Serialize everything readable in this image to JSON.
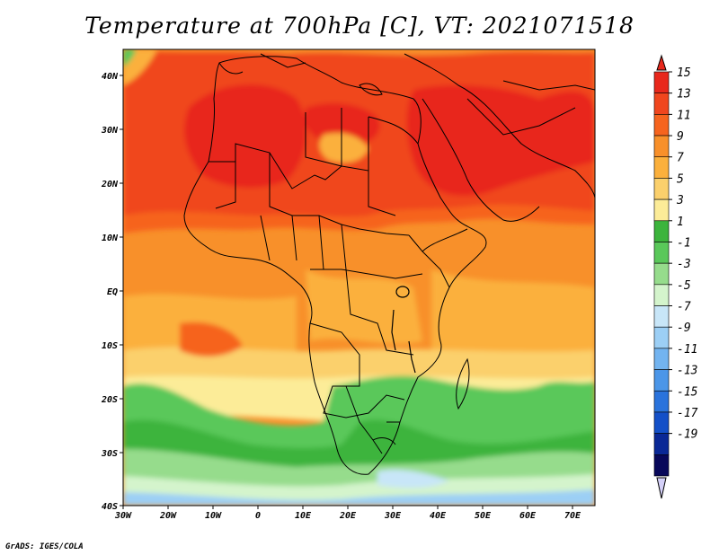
{
  "title": "Temperature at 700hPa [C], VT: 2021071518",
  "credit": "GrADS: IGES/COLA",
  "axes": {
    "lon_ticks": [
      "30W",
      "20W",
      "10W",
      "0",
      "10E",
      "20E",
      "30E",
      "40E",
      "50E",
      "60E",
      "70E"
    ],
    "lat_ticks": [
      "40N",
      "30N",
      "20N",
      "10N",
      "EQ",
      "10S",
      "20S",
      "30S",
      "40S"
    ]
  },
  "colorbar": {
    "labels": [
      "15",
      "13",
      "11",
      "9",
      "7",
      "5",
      "3",
      "1",
      "-1",
      "-3",
      "-5",
      "-7",
      "-9",
      "-11",
      "-13",
      "-15",
      "-17",
      "-19"
    ],
    "colors": [
      "#e8281c",
      "#f0461e",
      "#f6641e",
      "#f8902a",
      "#fbb03c",
      "#fbd06c",
      "#fcec98",
      "#3cb43c",
      "#5ac85a",
      "#96dc8c",
      "#d4f4cc",
      "#c8e6f8",
      "#9ccff5",
      "#73b4f0",
      "#4b96e8",
      "#2a73dc",
      "#1450c8",
      "#0a2896",
      "#08085a"
    ]
  },
  "map": {
    "region": "Africa",
    "lon_range": [
      -30,
      75
    ],
    "lat_range": [
      -40,
      45
    ],
    "field": "Temperature at 700hPa",
    "units": "C"
  }
}
